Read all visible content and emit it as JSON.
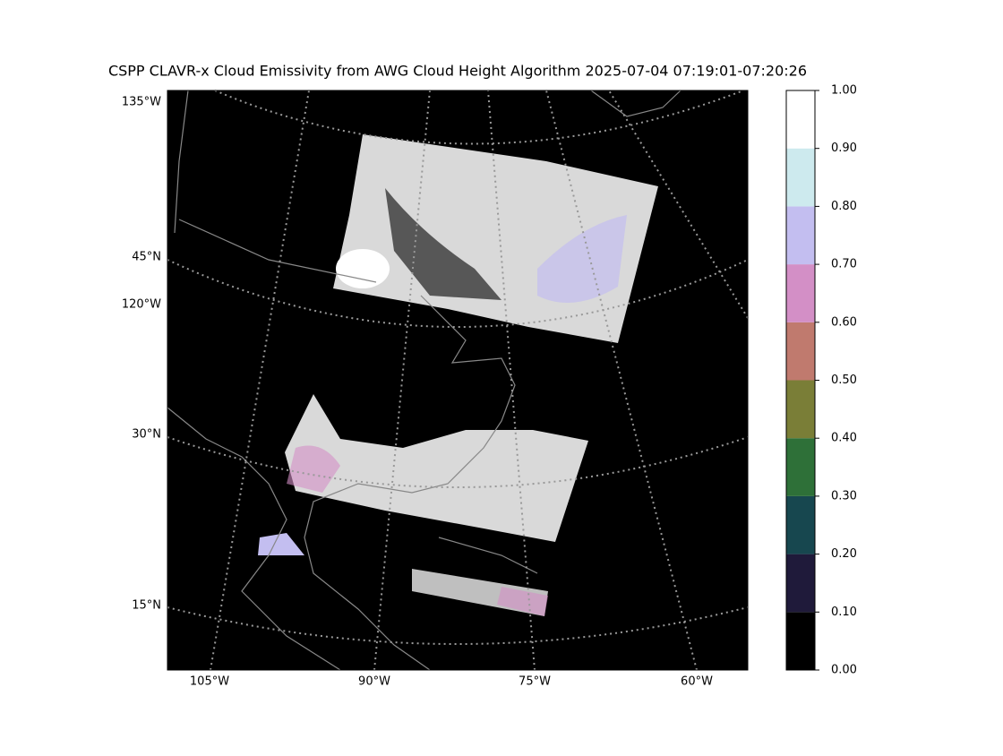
{
  "title": "CSPP CLAVR-x Cloud Emissivity from AWG Cloud Height Algorithm 2025-07-04 07:19:01-07:20:26",
  "map": {
    "left_labels": [
      "135°W",
      "45°N",
      "120°W",
      "30°N",
      "15°N"
    ],
    "bottom_labels": [
      "105°W",
      "90°W",
      "75°W",
      "60°W"
    ]
  },
  "colorbar": {
    "ticks": [
      {
        "value": 0,
        "label": "0.00"
      },
      {
        "value": 0.1,
        "label": "0.10"
      },
      {
        "value": 0.2,
        "label": "0.20"
      },
      {
        "value": 0.3,
        "label": "0.30"
      },
      {
        "value": 0.4,
        "label": "0.40"
      },
      {
        "value": 0.5,
        "label": "0.50"
      },
      {
        "value": 0.6,
        "label": "0.60"
      },
      {
        "value": 0.7,
        "label": "0.70"
      },
      {
        "value": 0.8,
        "label": "0.80"
      },
      {
        "value": 0.9,
        "label": "0.90"
      },
      {
        "value": 1,
        "label": "1.00"
      }
    ],
    "lim": [
      0,
      1
    ],
    "colors": [
      "#000000",
      "#1f1a3a",
      "#17474f",
      "#2e7038",
      "#7a7e37",
      "#c07a6e",
      "#d38fc6",
      "#c3bef0",
      "#cdeaee",
      "#ffffff"
    ]
  }
}
